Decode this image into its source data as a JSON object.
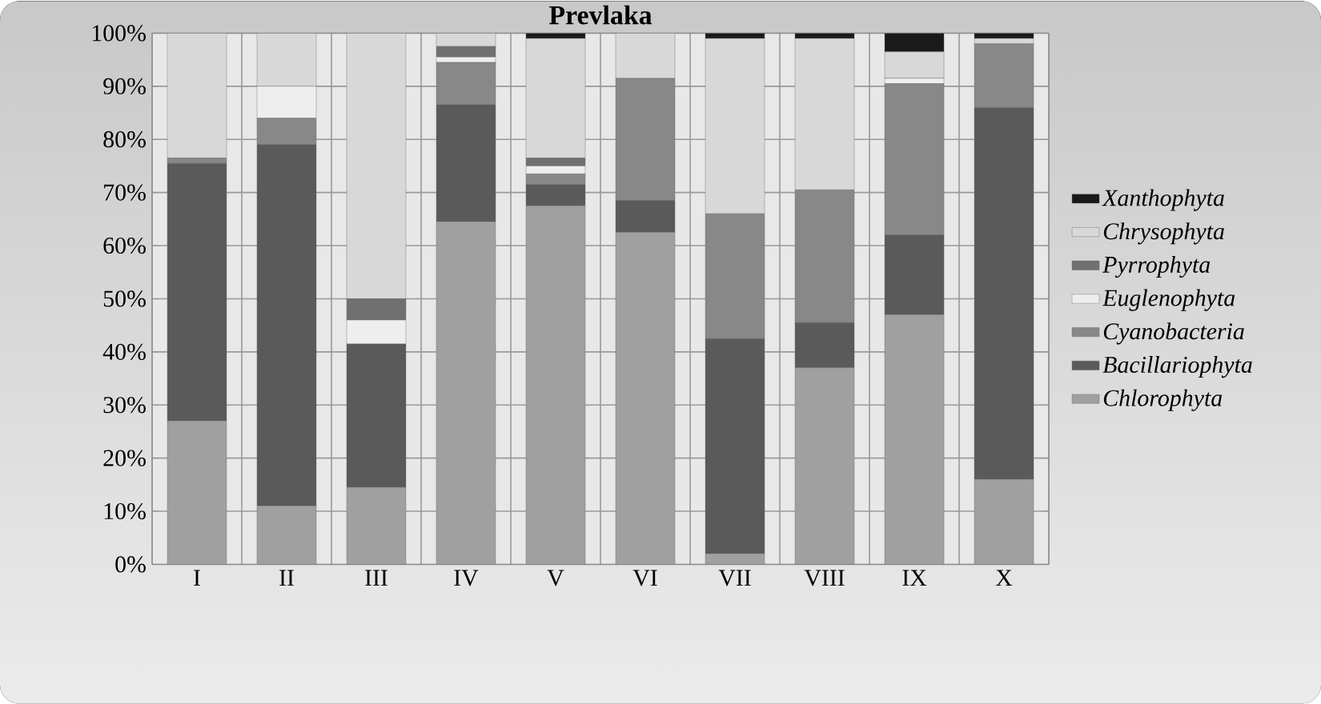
{
  "chart_data": {
    "type": "bar",
    "stacked": true,
    "title": "Prevlaka",
    "categories": [
      "I",
      "II",
      "III",
      "IV",
      "V",
      "VI",
      "VII",
      "VIII",
      "IX",
      "X"
    ],
    "series": [
      {
        "name": "Chlorophyta",
        "color": "#a0a0a0",
        "values": [
          27,
          11,
          14.5,
          64.5,
          67.5,
          62.5,
          2,
          37,
          47,
          16
        ]
      },
      {
        "name": "Bacillariophyta",
        "color": "#5a5a5a",
        "values": [
          48.5,
          68,
          27,
          22,
          4,
          6,
          40.5,
          8.5,
          15,
          70
        ]
      },
      {
        "name": "Cyanobacteria",
        "color": "#888888",
        "values": [
          1,
          5,
          0,
          8,
          2,
          23,
          23.5,
          25,
          28.5,
          12
        ]
      },
      {
        "name": "Euglenophyta",
        "color": "#eeeeee",
        "values": [
          0,
          6,
          4.5,
          1,
          1.5,
          0,
          0,
          0,
          1,
          0
        ]
      },
      {
        "name": "Pyrrophyta",
        "color": "#707070",
        "values": [
          0,
          0,
          4,
          2,
          1.5,
          0,
          0,
          0,
          0,
          0
        ]
      },
      {
        "name": "Chrysophyta",
        "color": "#d8d8d8",
        "values": [
          23.5,
          10,
          50,
          2.5,
          22.5,
          8.5,
          33,
          28.5,
          5,
          1
        ]
      },
      {
        "name": "Xanthophyta",
        "color": "#1a1a1a",
        "values": [
          0,
          0,
          0,
          0,
          1,
          0,
          1,
          1,
          3.5,
          1
        ]
      }
    ],
    "ylim": [
      0,
      100
    ],
    "yticks": [
      {
        "value": 0,
        "label": "0%"
      },
      {
        "value": 10,
        "label": "10%"
      },
      {
        "value": 20,
        "label": "20%"
      },
      {
        "value": 30,
        "label": "30%"
      },
      {
        "value": 40,
        "label": "40%"
      },
      {
        "value": 50,
        "label": "50%"
      },
      {
        "value": 60,
        "label": "60%"
      },
      {
        "value": 70,
        "label": "70%"
      },
      {
        "value": 80,
        "label": "80%"
      },
      {
        "value": 90,
        "label": "90%"
      },
      {
        "value": 100,
        "label": "100%"
      }
    ],
    "grid": true,
    "legend": "right"
  }
}
